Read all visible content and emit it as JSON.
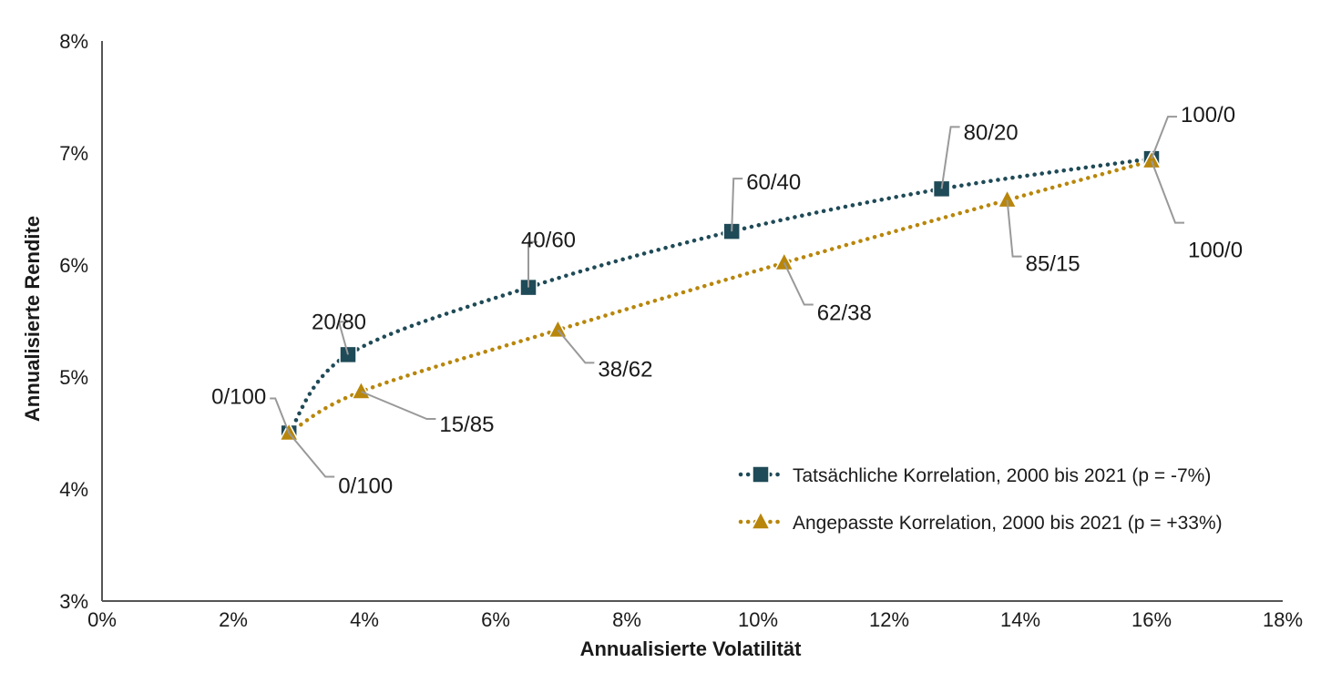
{
  "chart_data": {
    "type": "line",
    "xlabel": "Annualisierte Volatilität",
    "ylabel": "Annualisierte Rendite",
    "xlim": [
      0,
      18
    ],
    "ylim": [
      3,
      8
    ],
    "x_ticks": [
      "0%",
      "2%",
      "4%",
      "6%",
      "8%",
      "10%",
      "12%",
      "14%",
      "16%",
      "18%"
    ],
    "y_ticks": [
      "3%",
      "4%",
      "5%",
      "6%",
      "7%",
      "8%"
    ],
    "grid": false,
    "legend_position": "bottom-right",
    "series": [
      {
        "name": "Tatsächliche Korrelation, 2000 bis 2021 (p = -7%)",
        "color": "#1f4a57",
        "marker": "square",
        "points": [
          {
            "x": 2.85,
            "y": 4.5,
            "label": "0/100"
          },
          {
            "x": 3.75,
            "y": 5.2,
            "label": "20/80"
          },
          {
            "x": 6.5,
            "y": 5.8,
            "label": "40/60"
          },
          {
            "x": 9.6,
            "y": 6.3,
            "label": "60/40"
          },
          {
            "x": 12.8,
            "y": 6.68,
            "label": "80/20"
          },
          {
            "x": 16.0,
            "y": 6.95,
            "label": "100/0"
          }
        ]
      },
      {
        "name": "Angepasste Korrelation, 2000 bis 2021 (p = +33%)",
        "color": "#b8860b",
        "marker": "triangle",
        "points": [
          {
            "x": 2.85,
            "y": 4.5,
            "label": "0/100"
          },
          {
            "x": 3.95,
            "y": 4.87,
            "label": "15/85"
          },
          {
            "x": 6.95,
            "y": 5.42,
            "label": "38/62"
          },
          {
            "x": 10.4,
            "y": 6.02,
            "label": "62/38"
          },
          {
            "x": 13.8,
            "y": 6.58,
            "label": "85/15"
          },
          {
            "x": 16.0,
            "y": 6.93,
            "label": "100/0"
          }
        ]
      }
    ]
  }
}
